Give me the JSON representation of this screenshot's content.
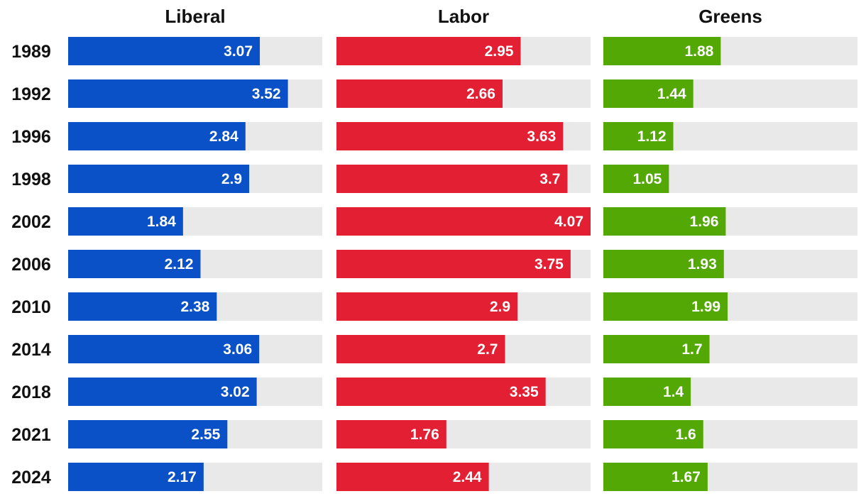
{
  "chart_data": {
    "type": "bar",
    "orientation": "horizontal",
    "categories": [
      "1989",
      "1992",
      "1996",
      "1998",
      "2002",
      "2006",
      "2010",
      "2014",
      "2018",
      "2021",
      "2024"
    ],
    "xlim": [
      0,
      4.07
    ],
    "series": [
      {
        "name": "Liberal",
        "color": "#0a51c7",
        "values": [
          3.07,
          3.52,
          2.84,
          2.9,
          1.84,
          2.12,
          2.38,
          3.06,
          3.02,
          2.55,
          2.17
        ]
      },
      {
        "name": "Labor",
        "color": "#e21f33",
        "values": [
          2.95,
          2.66,
          3.63,
          3.7,
          4.07,
          3.75,
          2.9,
          2.7,
          3.35,
          1.76,
          2.44
        ]
      },
      {
        "name": "Greens",
        "color": "#54a806",
        "values": [
          1.88,
          1.44,
          1.12,
          1.05,
          1.96,
          1.93,
          1.99,
          1.7,
          1.4,
          1.6,
          1.67
        ]
      }
    ],
    "track_color": "#e9e9e9",
    "grid": false,
    "legend": "none"
  }
}
